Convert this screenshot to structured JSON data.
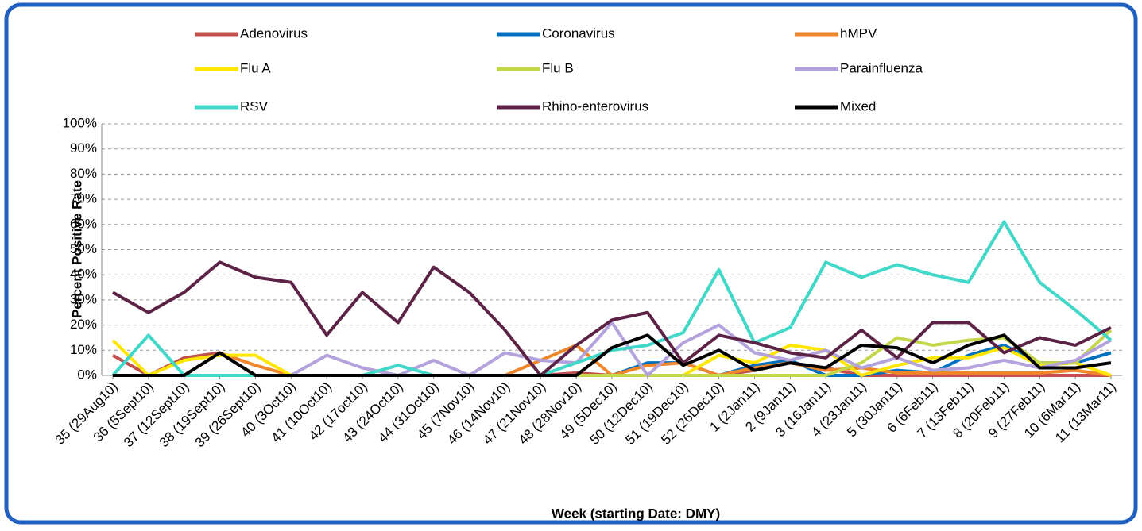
{
  "chart_data": {
    "type": "line",
    "ylabel": "Percent Positive Rate",
    "xlabel": "Week (starting Date: DMY)",
    "categories": [
      "35 (29Aug10)",
      "36 (5Sept10)",
      "37 (12Sept10)",
      "38 (19Sept10)",
      "39 (26Sept10)",
      "40 (3Oct10)",
      "41 (10Oct10)",
      "42 (17oct10)",
      "43 (24Oct10)",
      "44 (31Oct10)",
      "45 (7Nov10)",
      "46 (14Nov10)",
      "47 (21Nov10)",
      "48 (28Nov10)",
      "49 (5Dec10)",
      "50 (12Dec10)",
      "51 (19Dec10)",
      "52 (26Dec10)",
      "1 (2Jan11)",
      "2 (9Jan11)",
      "3 (16Jan11)",
      "4 (23Jan11)",
      "5 (30Jan11)",
      "6 (6Feb11)",
      "7 (13Feb11)",
      "8 (20Feb11)",
      "9 (27Feb11)",
      "10 (6Mar11)",
      "11 (13Mar11)"
    ],
    "series": [
      {
        "name": "Adenovirus",
        "color": "#c0504d",
        "values": [
          8,
          0,
          7,
          9,
          0,
          0,
          0,
          0,
          0,
          0,
          0,
          0,
          0,
          1,
          0,
          0,
          0,
          0,
          2,
          5,
          3,
          0,
          0,
          0,
          0,
          0,
          0,
          0,
          0
        ]
      },
      {
        "name": "Coronavirus",
        "color": "#0070c0",
        "values": [
          0,
          0,
          0,
          0,
          0,
          0,
          0,
          0,
          0,
          0,
          0,
          0,
          0,
          0,
          0,
          5,
          5,
          0,
          4,
          6,
          0,
          0,
          2,
          1,
          8,
          12,
          5,
          5,
          9
        ]
      },
      {
        "name": "hMPV",
        "color": "#f0862a",
        "values": [
          0,
          0,
          0,
          9,
          4,
          0,
          0,
          0,
          0,
          0,
          0,
          0,
          6,
          12,
          0,
          4,
          5,
          0,
          3,
          5,
          2,
          3,
          1,
          1,
          1,
          1,
          1,
          2,
          0
        ]
      },
      {
        "name": "Flu A",
        "color": "#ffe600",
        "values": [
          14,
          0,
          6,
          8,
          8,
          0,
          0,
          0,
          0,
          0,
          0,
          0,
          0,
          0,
          0,
          0,
          0,
          8,
          5,
          12,
          10,
          0,
          4,
          7,
          7,
          11,
          4,
          5,
          0
        ]
      },
      {
        "name": "Flu B",
        "color": "#c4d64a",
        "values": [
          0,
          0,
          0,
          0,
          0,
          0,
          0,
          0,
          0,
          0,
          0,
          0,
          0,
          0,
          0,
          0,
          0,
          0,
          0,
          0,
          0,
          5,
          15,
          12,
          14,
          15,
          5,
          5,
          18
        ]
      },
      {
        "name": "Parainfluenza",
        "color": "#b3a2dc",
        "values": [
          0,
          0,
          0,
          0,
          0,
          0,
          8,
          3,
          0,
          6,
          0,
          9,
          6,
          5,
          21,
          0,
          13,
          20,
          9,
          6,
          10,
          3,
          7,
          2,
          3,
          6,
          3,
          6,
          14
        ]
      },
      {
        "name": "RSV",
        "color": "#40d8c8",
        "values": [
          0,
          16,
          0,
          0,
          0,
          0,
          0,
          0,
          4,
          0,
          0,
          0,
          0,
          5,
          10,
          12,
          17,
          42,
          13,
          19,
          45,
          39,
          44,
          40,
          37,
          61,
          37,
          26,
          14
        ]
      },
      {
        "name": "Rhino-enterovirus",
        "color": "#5c2346",
        "values": [
          33,
          25,
          33,
          45,
          39,
          37,
          16,
          33,
          21,
          43,
          33,
          18,
          0,
          12,
          22,
          25,
          5,
          16,
          13,
          9,
          7,
          18,
          7,
          21,
          21,
          9,
          15,
          12,
          19
        ]
      },
      {
        "name": "Mixed",
        "color": "#000000",
        "values": [
          0,
          0,
          0,
          9,
          0,
          0,
          0,
          0,
          0,
          0,
          0,
          0,
          0,
          0,
          11,
          16,
          4,
          10,
          2,
          5,
          3,
          12,
          11,
          5,
          12,
          16,
          3,
          3,
          5
        ]
      }
    ],
    "ylim": [
      0,
      100
    ],
    "yticks": [
      {
        "value": 0,
        "label": "0%"
      },
      {
        "value": 10,
        "label": "10%"
      },
      {
        "value": 20,
        "label": "20%"
      },
      {
        "value": 30,
        "label": "30%"
      },
      {
        "value": 40,
        "label": "40%"
      },
      {
        "value": 50,
        "label": "50%"
      },
      {
        "value": 60,
        "label": "60%"
      },
      {
        "value": 70,
        "label": "70%"
      },
      {
        "value": 80,
        "label": "80%"
      },
      {
        "value": 90,
        "label": "90%"
      },
      {
        "value": 100,
        "label": "100%"
      }
    ],
    "grid": true
  }
}
